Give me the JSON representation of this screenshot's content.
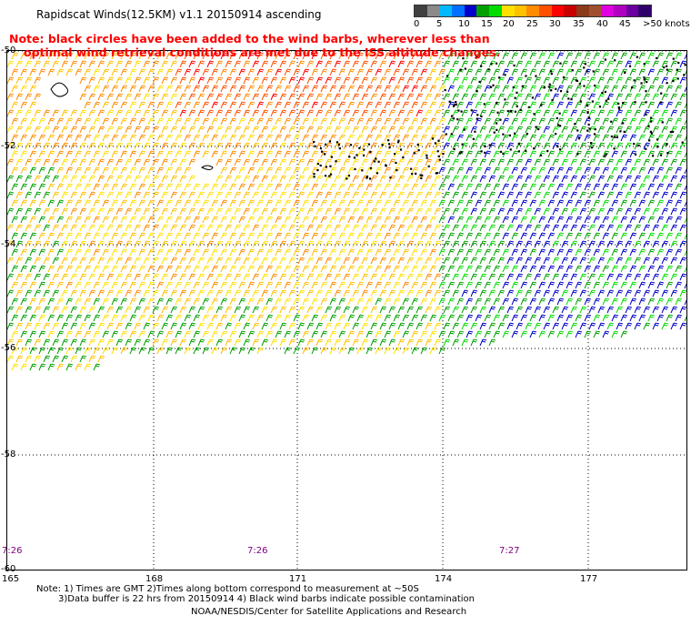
{
  "title": "Rapidscat Winds(12.5KM) v1.1 20150914 ascending",
  "note": {
    "line1": "Note: black circles have been added to the wind barbs, wherever less than",
    "line2": "optimal wind retrieval conditions are met due to the ISS altitude changes."
  },
  "colorbar": {
    "colors": [
      "#404040",
      "#8a8a8a",
      "#00b8ff",
      "#0070ff",
      "#0000c8",
      "#00a000",
      "#00dc00",
      "#ffe000",
      "#ffc000",
      "#ff8c00",
      "#ff5000",
      "#ff0000",
      "#c80000",
      "#8b3a1a",
      "#a05030",
      "#e000e0",
      "#b000c0",
      "#6a00a0",
      "#30006a"
    ],
    "labels": [
      "0",
      "5",
      "10",
      "15",
      "20",
      "25",
      "30",
      "35",
      "40",
      "45",
      ">50 knots"
    ]
  },
  "y_ticks": [
    "-50",
    "-52",
    "-54",
    "-56",
    "-58",
    "-60"
  ],
  "x_ticks": [
    "165",
    "168",
    "171",
    "174",
    "177"
  ],
  "time_labels": [
    "7:26",
    "7:26",
    "7:27"
  ],
  "footer": {
    "line1": "Note: 1) Times are GMT 2)Times along bottom correspond to measurement at ~50S",
    "line2": "3)Data buffer is 22 hrs from 20150914 4) Black wind barbs indicate possible contamination",
    "line3": "NOAA/NESDIS/Center for Satellite Applications and Research"
  }
}
